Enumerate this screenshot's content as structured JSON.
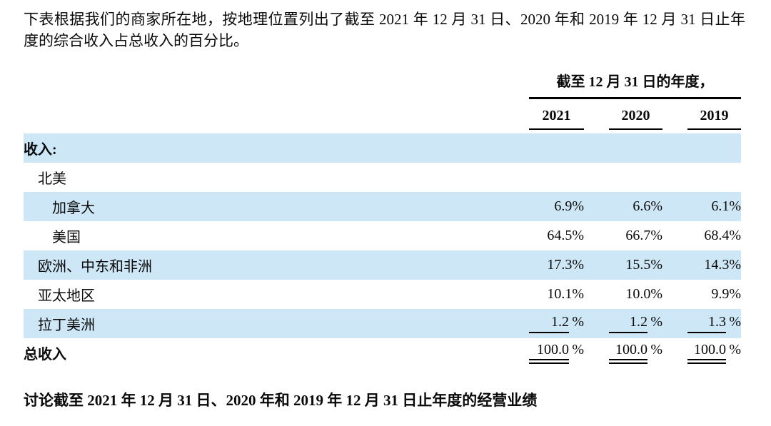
{
  "intro": {
    "text": "下表根据我们的商家所在地，按地理位置列出了截至 2021 年 12 月 31 日、2020 年和 2019 年 12 月 31 日止年度的综合收入占总收入的百分比。"
  },
  "table": {
    "period_caption": "截至 12 月 31 日的年度，",
    "years": [
      "2021",
      "2020",
      "2019"
    ],
    "rows": [
      {
        "label": "收入:",
        "values": [
          "",
          "",
          ""
        ]
      },
      {
        "label": "北美",
        "values": [
          "",
          "",
          ""
        ]
      },
      {
        "label": "加拿大",
        "values": [
          "6.9%",
          "6.6%",
          "6.1%"
        ]
      },
      {
        "label": "美国",
        "values": [
          "64.5%",
          "66.7%",
          "68.4%"
        ]
      },
      {
        "label": "欧洲、中东和非洲",
        "values": [
          "17.3%",
          "15.5%",
          "14.3%"
        ]
      },
      {
        "label": "亚太地区",
        "values": [
          "10.1%",
          "10.0%",
          "9.9%"
        ]
      },
      {
        "label": "拉丁美洲",
        "nums": [
          "1.2",
          "1.2",
          "1.3"
        ],
        "suffix": "%",
        "underline": "single"
      },
      {
        "label": "总收入",
        "nums": [
          "100.0",
          "100.0",
          "100.0"
        ],
        "suffix": "%",
        "underline": "double"
      }
    ]
  },
  "footer": {
    "heading": "讨论截至 2021 年 12 月 31 日、2020 年和 2019 年 12 月 31 日止年度的经营业绩"
  },
  "colors": {
    "row_shade": "#cde7f6",
    "text": "#0a0a0a",
    "rule": "#000000"
  }
}
